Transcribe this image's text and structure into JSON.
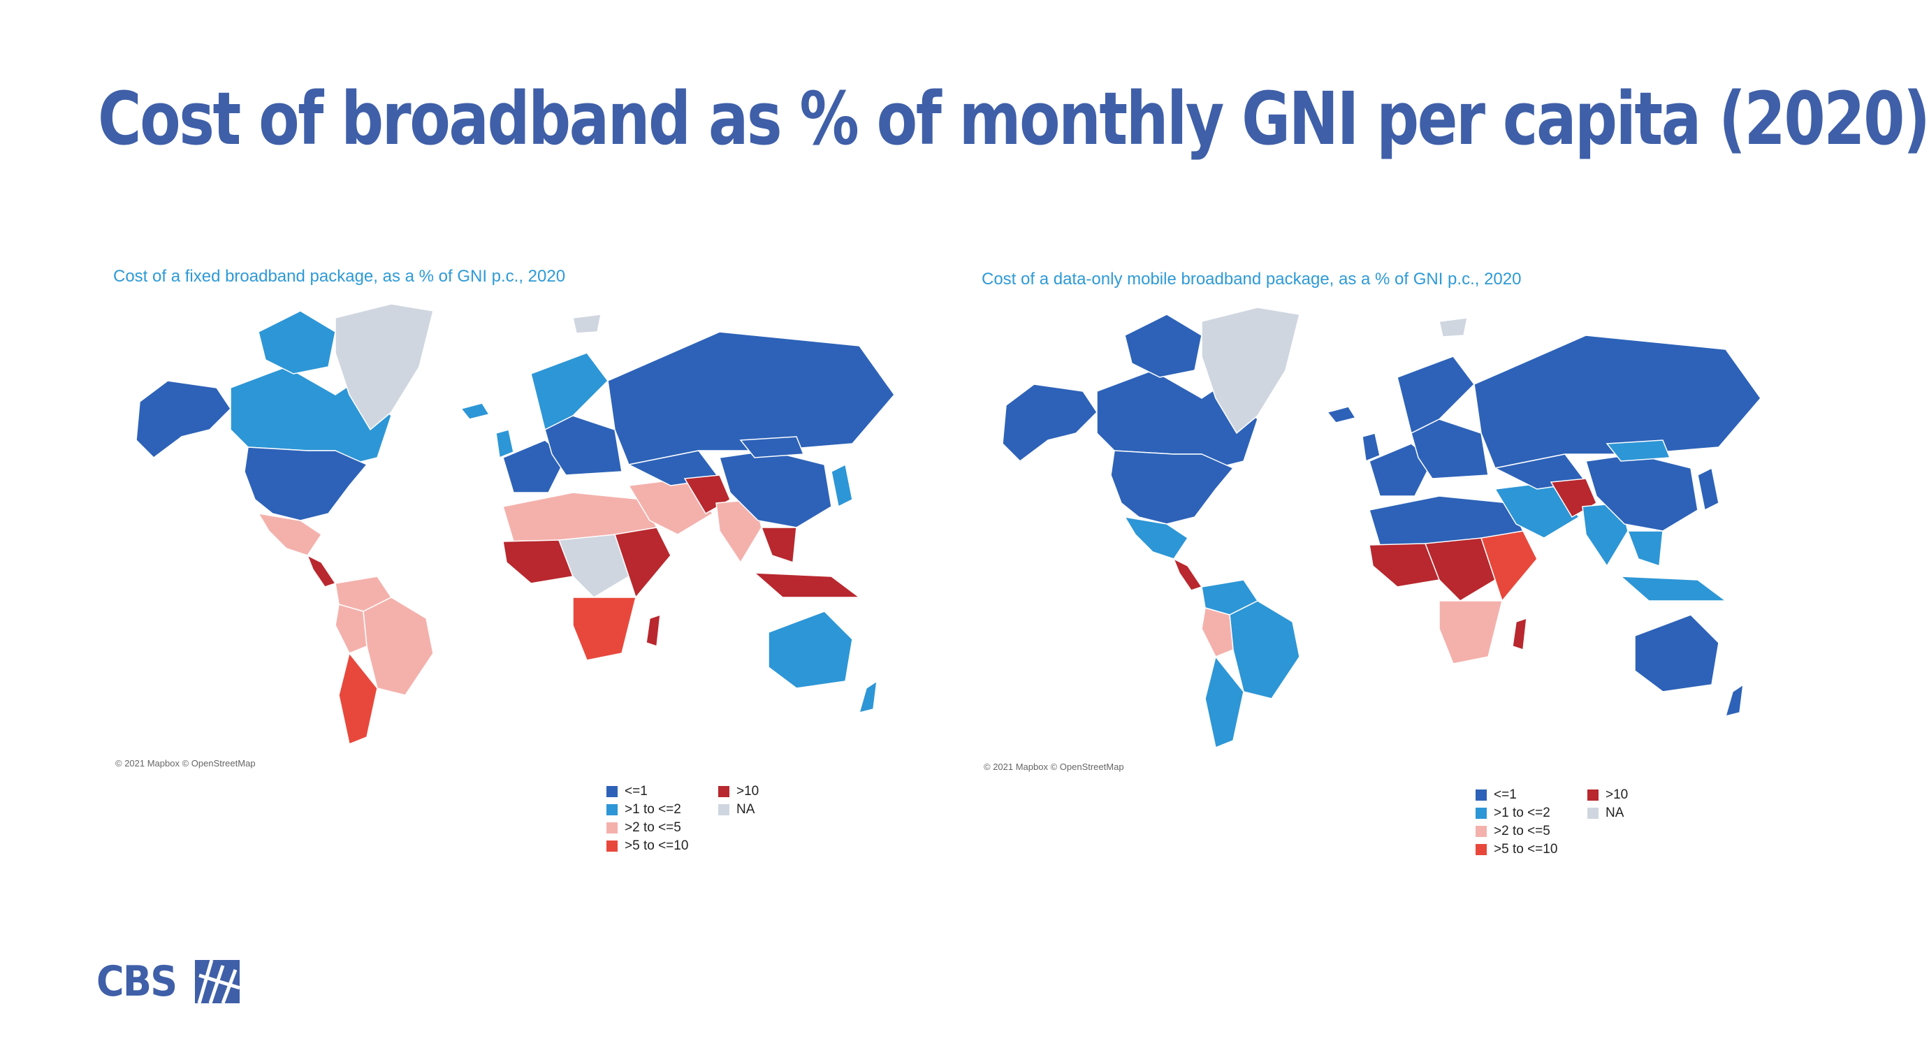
{
  "title": "Cost of broadband as % of monthly GNI per capita (2020)",
  "colors": {
    "title": "#3f5fa8",
    "panel_title": "#2e9ad6",
    "le1": "#2d62b8",
    "r1to2": "#2d96d6",
    "r2to5": "#f4b1ac",
    "r5to10": "#e8483c",
    "gt10": "#b8282e",
    "na": "#cfd6e0"
  },
  "legend": {
    "items": [
      {
        "key": "le1",
        "label": "<=1"
      },
      {
        "key": "r1to2",
        "label": ">1 to <=2"
      },
      {
        "key": "r2to5",
        "label": ">2 to <=5"
      },
      {
        "key": "r5to10",
        "label": ">5 to <=10"
      },
      {
        "key": "gt10",
        "label": ">10"
      },
      {
        "key": "na",
        "label": "NA"
      }
    ]
  },
  "maps": [
    {
      "title": "Cost of a fixed broadband package, as a % of GNI p.c., 2020",
      "attribution": "© 2021 Mapbox © OpenStreetMap",
      "regions": {
        "alaska": "le1",
        "canada": "r1to2",
        "arctic_isl": "r1to2",
        "greenland": "na",
        "usa": "le1",
        "mexico": "r2to5",
        "central_america": "gt10",
        "colombia_ven": "r2to5",
        "brazil": "r2to5",
        "peru_bol": "r2to5",
        "argentina_chile": "r5to10",
        "iceland": "r1to2",
        "uk": "r1to2",
        "scandinavia": "r1to2",
        "w_europe": "le1",
        "e_europe": "le1",
        "russia": "le1",
        "north_africa": "r2to5",
        "west_africa": "gt10",
        "central_africa": "na",
        "east_africa": "gt10",
        "southern_africa": "r5to10",
        "madagascar": "gt10",
        "middle_east": "r2to5",
        "central_asia": "le1",
        "south_asia": "gt10",
        "india": "r2to5",
        "china": "le1",
        "mongolia": "le1",
        "se_asia": "gt10",
        "indonesia": "gt10",
        "japan": "r1to2",
        "australia": "r1to2",
        "new_zealand": "r1to2",
        "svalbard": "na"
      }
    },
    {
      "title": "Cost of a data-only mobile broadband package, as a % of GNI p.c., 2020",
      "attribution": "© 2021 Mapbox © OpenStreetMap",
      "regions": {
        "alaska": "le1",
        "canada": "le1",
        "arctic_isl": "le1",
        "greenland": "na",
        "usa": "le1",
        "mexico": "r1to2",
        "central_america": "gt10",
        "colombia_ven": "r1to2",
        "brazil": "r1to2",
        "peru_bol": "r2to5",
        "argentina_chile": "r1to2",
        "iceland": "le1",
        "uk": "le1",
        "scandinavia": "le1",
        "w_europe": "le1",
        "e_europe": "le1",
        "russia": "le1",
        "north_africa": "le1",
        "west_africa": "gt10",
        "central_africa": "gt10",
        "east_africa": "r5to10",
        "southern_africa": "r2to5",
        "madagascar": "gt10",
        "middle_east": "r1to2",
        "central_asia": "le1",
        "south_asia": "gt10",
        "india": "r1to2",
        "china": "le1",
        "mongolia": "r1to2",
        "se_asia": "r1to2",
        "indonesia": "r1to2",
        "japan": "le1",
        "australia": "le1",
        "new_zealand": "le1",
        "svalbard": "na"
      }
    }
  ],
  "logo": {
    "text": "CBS"
  }
}
